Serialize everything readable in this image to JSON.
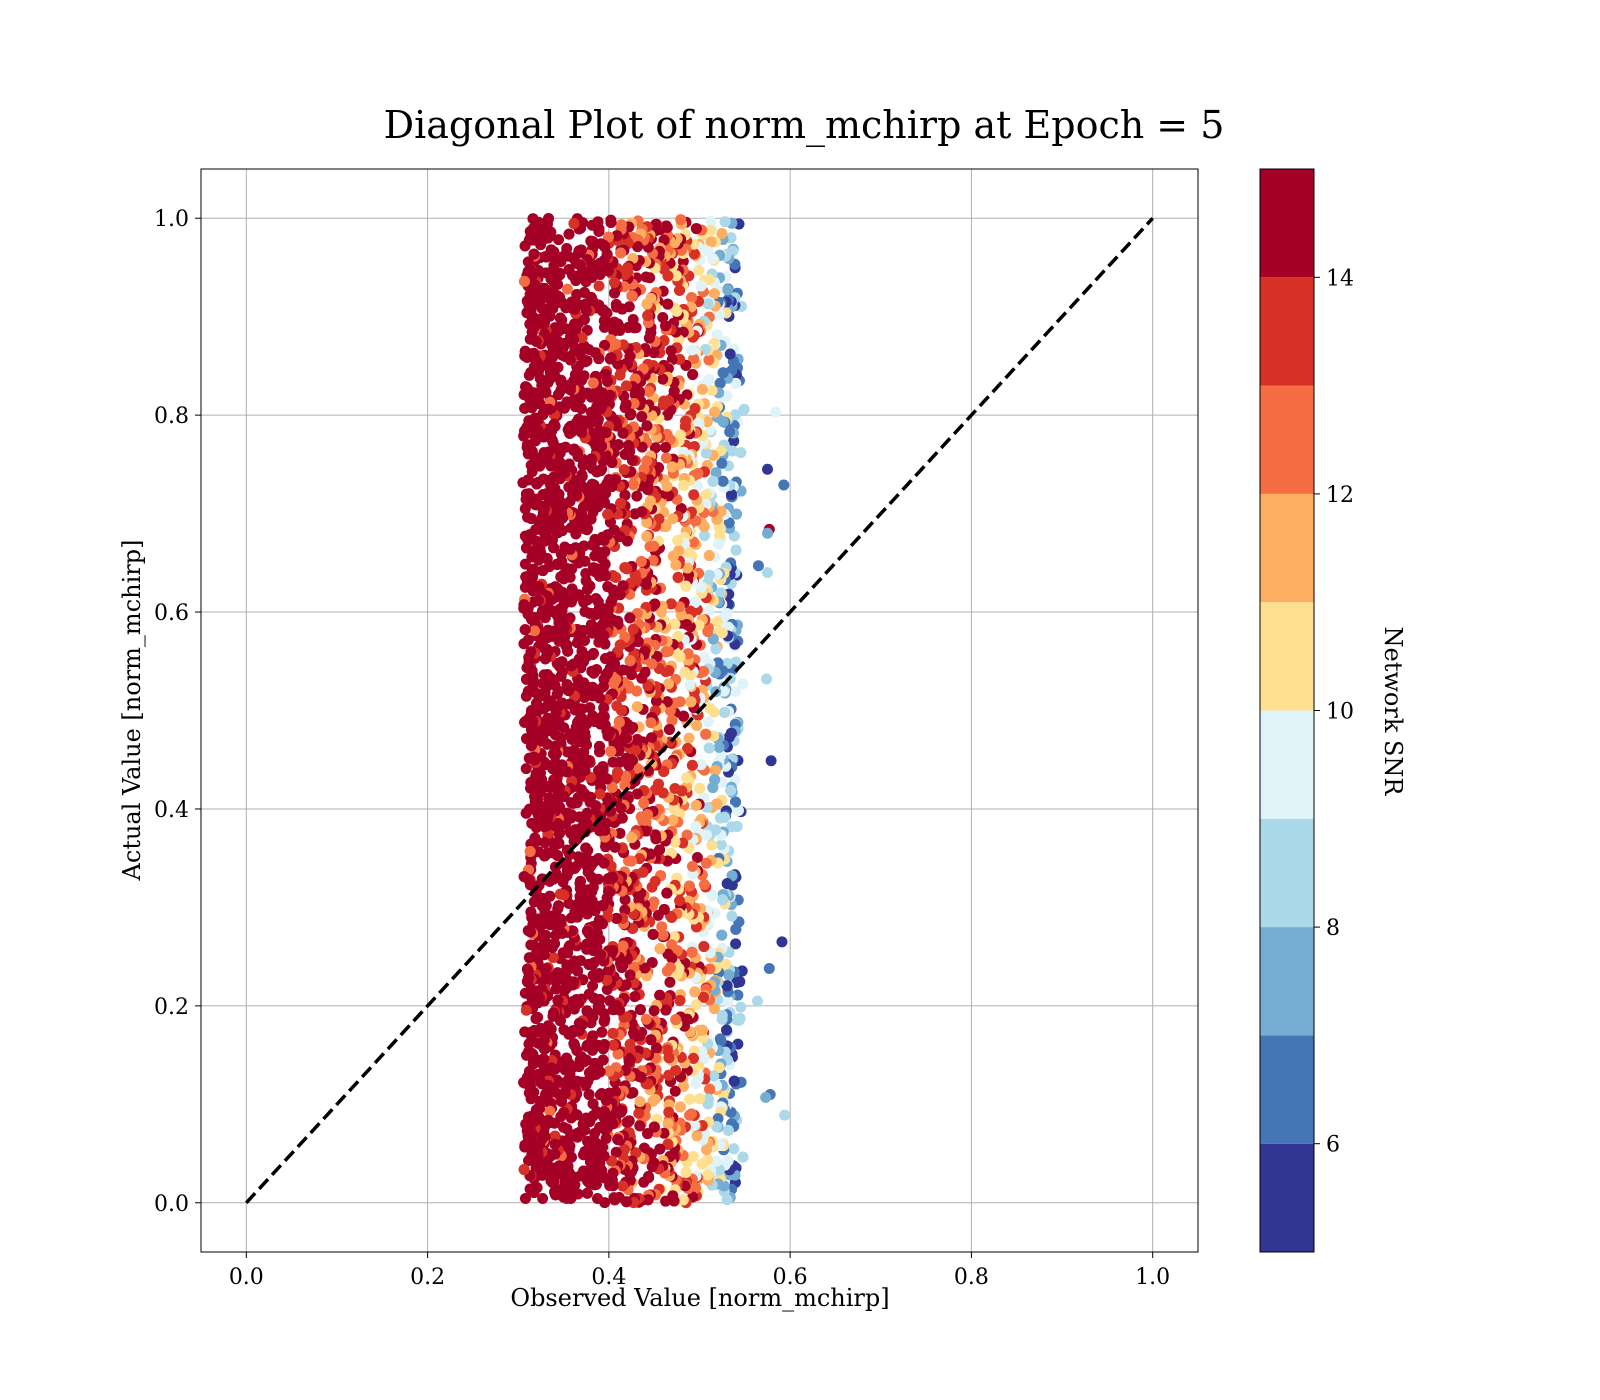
{
  "chart_data": {
    "type": "scatter",
    "title": "Diagonal Plot of norm_mchirp at Epoch = 5",
    "xlabel": "Observed Value [norm_mchirp]",
    "ylabel": "Actual Value [norm_mchirp]",
    "xlim": [
      -0.05,
      1.05
    ],
    "ylim": [
      -0.05,
      1.05
    ],
    "x_ticks": [
      "0.0",
      "0.2",
      "0.4",
      "0.6",
      "0.8",
      "1.0"
    ],
    "y_ticks": [
      "0.0",
      "0.2",
      "0.4",
      "0.6",
      "0.8",
      "1.0"
    ],
    "grid": true,
    "reference_line": {
      "style": "dashed",
      "color": "#000000",
      "from": [
        0.0,
        0.0
      ],
      "to": [
        1.0,
        1.0
      ]
    },
    "colorbar": {
      "label": "Network SNR",
      "range": [
        5,
        15
      ],
      "ticks": [
        "6",
        "8",
        "10",
        "12",
        "14"
      ],
      "levels": [
        5,
        6,
        7,
        8,
        9,
        10,
        11,
        12,
        13,
        14,
        15
      ],
      "colors": [
        "#313695",
        "#4575b4",
        "#74add1",
        "#abd9e9",
        "#e0f3f8",
        "#fee090",
        "#fdae61",
        "#f46d43",
        "#d73027",
        "#a50026"
      ]
    },
    "series": [
      {
        "points_summary": {
          "x_range": [
            0.31,
            0.56
          ],
          "y_range": [
            0.0,
            1.0
          ],
          "approx_count": 6000,
          "snr_by_x": [
            {
              "x_range": [
                0.31,
                0.4
              ],
              "snr_dominant": 15
            },
            {
              "x_range": [
                0.4,
                0.5
              ],
              "snr_dominant": 13
            },
            {
              "x_range": [
                0.5,
                0.53
              ],
              "snr_dominant": 10
            },
            {
              "x_range": [
                0.53,
                0.56
              ],
              "snr_dominant": 6
            }
          ]
        },
        "outliers": [
          {
            "x": 0.575,
            "y": 0.745,
            "snr": 5.2
          },
          {
            "x": 0.593,
            "y": 0.729,
            "snr": 6.3
          },
          {
            "x": 0.577,
            "y": 0.684,
            "snr": 14.8
          },
          {
            "x": 0.575,
            "y": 0.68,
            "snr": 7.8
          },
          {
            "x": 0.565,
            "y": 0.647,
            "snr": 6.2
          },
          {
            "x": 0.575,
            "y": 0.64,
            "snr": 8.2
          },
          {
            "x": 0.574,
            "y": 0.532,
            "snr": 8.6
          },
          {
            "x": 0.579,
            "y": 0.449,
            "snr": 5.3
          },
          {
            "x": 0.591,
            "y": 0.265,
            "snr": 5.2
          },
          {
            "x": 0.577,
            "y": 0.238,
            "snr": 6.1
          },
          {
            "x": 0.564,
            "y": 0.205,
            "snr": 8.9
          },
          {
            "x": 0.578,
            "y": 0.11,
            "snr": 6.4
          },
          {
            "x": 0.573,
            "y": 0.107,
            "snr": 7.8
          },
          {
            "x": 0.584,
            "y": 0.803,
            "snr": 9.6
          },
          {
            "x": 0.594,
            "y": 0.089,
            "snr": 8.8
          }
        ]
      }
    ]
  }
}
